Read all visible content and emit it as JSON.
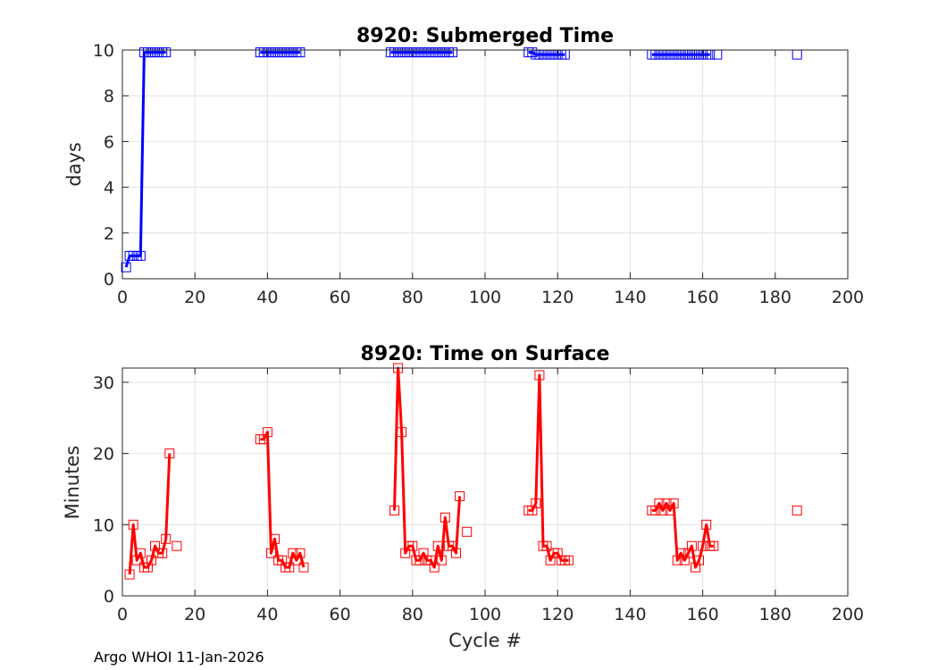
{
  "footer": "Argo WHOI 11-Jan-2026",
  "chart_data": [
    {
      "type": "line",
      "title": "8920: Submerged Time",
      "xlabel": "",
      "ylabel": "days",
      "xlim": [
        0,
        200
      ],
      "ylim": [
        0,
        10
      ],
      "xticks": [
        "0",
        "20",
        "40",
        "60",
        "80",
        "100",
        "120",
        "140",
        "160",
        "180",
        "200"
      ],
      "yticks": [
        "0",
        "2",
        "4",
        "6",
        "8",
        "10"
      ],
      "grid": true,
      "series": [
        {
          "color": "#0000ff",
          "marker": "square",
          "x": [
            1,
            2,
            3,
            4,
            5,
            6,
            7,
            8,
            9,
            10,
            11,
            12,
            38,
            39,
            40,
            41,
            42,
            43,
            44,
            45,
            46,
            47,
            48,
            49,
            74,
            75,
            76,
            77,
            78,
            79,
            80,
            81,
            82,
            83,
            84,
            85,
            86,
            87,
            88,
            89,
            90,
            91,
            112,
            113,
            114,
            115,
            116,
            117,
            118,
            119,
            120,
            121,
            122,
            146,
            147,
            148,
            149,
            150,
            151,
            152,
            153,
            154,
            155,
            156,
            157,
            158,
            159,
            160,
            161,
            162,
            164,
            186
          ],
          "y": [
            0.5,
            1.0,
            1.0,
            1.0,
            1.0,
            9.9,
            9.9,
            9.9,
            9.9,
            9.9,
            9.9,
            9.9,
            9.9,
            9.9,
            9.9,
            9.9,
            9.9,
            9.9,
            9.9,
            9.9,
            9.9,
            9.9,
            9.9,
            9.9,
            9.9,
            9.9,
            9.9,
            9.9,
            9.9,
            9.9,
            9.9,
            9.9,
            9.9,
            9.9,
            9.9,
            9.9,
            9.9,
            9.9,
            9.9,
            9.9,
            9.9,
            9.9,
            9.9,
            9.9,
            9.8,
            9.8,
            9.8,
            9.8,
            9.8,
            9.8,
            9.8,
            9.8,
            9.8,
            9.8,
            9.8,
            9.8,
            9.8,
            9.8,
            9.8,
            9.8,
            9.8,
            9.8,
            9.8,
            9.8,
            9.8,
            9.8,
            9.8,
            9.8,
            9.8,
            9.8,
            9.8,
            9.8
          ]
        }
      ]
    },
    {
      "type": "line",
      "title": "8920: Time on Surface",
      "xlabel": "Cycle #",
      "ylabel": "Minutes",
      "xlim": [
        0,
        200
      ],
      "ylim": [
        0,
        32
      ],
      "xticks": [
        "0",
        "20",
        "40",
        "60",
        "80",
        "100",
        "120",
        "140",
        "160",
        "180",
        "200"
      ],
      "yticks": [
        "0",
        "10",
        "20",
        "30"
      ],
      "grid": true,
      "series": [
        {
          "color": "#ff0000",
          "marker": "square",
          "x": [
            2,
            3,
            4,
            5,
            6,
            7,
            8,
            9,
            10,
            11,
            12,
            13,
            15,
            38,
            39,
            40,
            41,
            42,
            43,
            44,
            45,
            46,
            47,
            48,
            49,
            50,
            75,
            76,
            77,
            78,
            79,
            80,
            81,
            82,
            83,
            84,
            85,
            86,
            87,
            88,
            89,
            90,
            91,
            92,
            93,
            95,
            112,
            113,
            114,
            115,
            116,
            117,
            118,
            119,
            120,
            121,
            122,
            123,
            146,
            147,
            148,
            149,
            150,
            151,
            152,
            153,
            154,
            155,
            156,
            157,
            158,
            159,
            160,
            161,
            162,
            163,
            186
          ],
          "y": [
            3,
            10,
            5,
            6,
            4,
            4,
            5,
            7,
            6,
            6,
            8,
            20,
            7,
            22,
            22,
            23,
            6,
            8,
            5,
            5,
            4,
            4,
            6,
            5,
            6,
            4,
            12,
            32,
            23,
            6,
            7,
            7,
            5,
            5,
            6,
            5,
            5,
            4,
            7,
            5,
            11,
            7,
            7,
            6,
            14,
            9,
            12,
            12,
            13,
            31,
            7,
            7,
            5,
            6,
            6,
            5,
            5,
            5,
            12,
            12,
            13,
            12,
            13,
            12,
            13,
            5,
            6,
            5,
            6,
            7,
            4,
            5,
            7,
            10,
            7,
            7,
            12
          ]
        }
      ]
    }
  ]
}
